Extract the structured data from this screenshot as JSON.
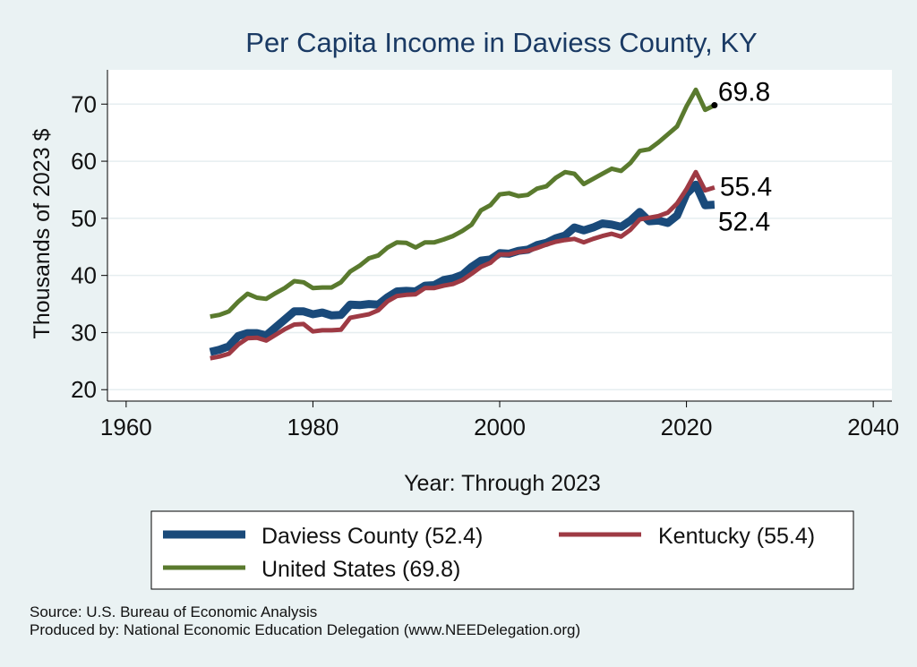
{
  "chart_data": {
    "type": "line",
    "title": "Per Capita Income in Daviess County, KY",
    "xlabel": "Year: Through 2023",
    "ylabel": "Thousands of 2023 $",
    "xlim": [
      1958,
      2042
    ],
    "ylim": [
      18,
      76
    ],
    "xticks": [
      1960,
      1980,
      2000,
      2020,
      2040
    ],
    "yticks": [
      20,
      30,
      40,
      50,
      60,
      70
    ],
    "grid": true,
    "x": [
      1969,
      1970,
      1971,
      1972,
      1973,
      1974,
      1975,
      1976,
      1977,
      1978,
      1979,
      1980,
      1981,
      1982,
      1983,
      1984,
      1985,
      1986,
      1987,
      1988,
      1989,
      1990,
      1991,
      1992,
      1993,
      1994,
      1995,
      1996,
      1997,
      1998,
      1999,
      2000,
      2001,
      2002,
      2003,
      2004,
      2005,
      2006,
      2007,
      2008,
      2009,
      2010,
      2011,
      2012,
      2013,
      2014,
      2015,
      2016,
      2017,
      2018,
      2019,
      2020,
      2021,
      2022,
      2023
    ],
    "series": [
      {
        "name": "Daviess County",
        "color": "#1a4a7a",
        "end_label": "52.4",
        "values": [
          26.6,
          27.0,
          27.6,
          29.4,
          29.9,
          29.9,
          29.5,
          30.9,
          32.3,
          33.7,
          33.7,
          33.2,
          33.5,
          33.0,
          33.1,
          34.9,
          34.8,
          35.0,
          34.9,
          36.2,
          37.2,
          37.3,
          37.2,
          38.2,
          38.3,
          39.2,
          39.5,
          40.1,
          41.5,
          42.6,
          42.8,
          43.9,
          43.8,
          44.3,
          44.5,
          45.3,
          45.7,
          46.5,
          47.0,
          48.4,
          47.9,
          48.4,
          49.1,
          48.9,
          48.5,
          49.6,
          51.1,
          49.5,
          49.6,
          49.2,
          50.5,
          54.3,
          55.9,
          52.3,
          52.4
        ]
      },
      {
        "name": "Kentucky",
        "color": "#9e3a44",
        "end_label": "55.4",
        "values": [
          25.5,
          25.8,
          26.3,
          27.9,
          29.0,
          29.1,
          28.6,
          29.6,
          30.6,
          31.4,
          31.5,
          30.2,
          30.4,
          30.4,
          30.5,
          32.6,
          32.9,
          33.2,
          33.9,
          35.5,
          36.4,
          36.6,
          36.7,
          37.8,
          37.8,
          38.2,
          38.5,
          39.2,
          40.3,
          41.5,
          42.2,
          43.7,
          43.7,
          44.1,
          44.3,
          44.8,
          45.4,
          45.9,
          46.2,
          46.4,
          45.8,
          46.4,
          46.9,
          47.3,
          46.8,
          48.0,
          49.8,
          50.1,
          50.4,
          51.0,
          52.6,
          55.1,
          58.1,
          54.9,
          55.4
        ]
      },
      {
        "name": "United States",
        "color": "#5a7a2e",
        "end_label": "69.8",
        "values": [
          32.8,
          33.1,
          33.7,
          35.4,
          36.8,
          36.1,
          35.9,
          36.9,
          37.8,
          39.0,
          38.8,
          37.8,
          37.9,
          37.9,
          38.8,
          40.7,
          41.7,
          43.0,
          43.5,
          44.9,
          45.8,
          45.7,
          44.9,
          45.8,
          45.8,
          46.3,
          46.9,
          47.8,
          48.9,
          51.4,
          52.3,
          54.2,
          54.4,
          53.9,
          54.1,
          55.2,
          55.6,
          57.1,
          58.1,
          57.8,
          56.0,
          56.9,
          57.8,
          58.7,
          58.3,
          59.7,
          61.8,
          62.1,
          63.3,
          64.7,
          66.1,
          69.6,
          72.5,
          69.0,
          69.8
        ]
      }
    ],
    "legend": {
      "position": "bottom",
      "entries": [
        "Daviess County (52.4)",
        "Kentucky (55.4)",
        "United States (69.8)"
      ]
    }
  },
  "footer": {
    "source": "Source: U.S. Bureau of Economic Analysis",
    "produced_by": "Produced by: National Economic Education Delegation (www.NEEDelegation.org)"
  }
}
